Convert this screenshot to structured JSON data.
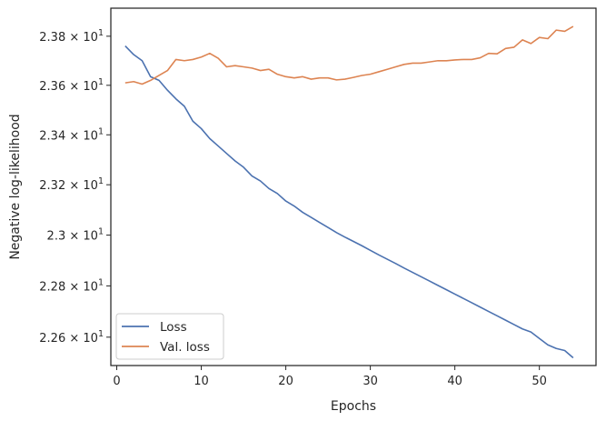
{
  "chart_data": {
    "type": "line",
    "xlabel": "Epochs",
    "ylabel": "Negative log-likelihood",
    "yscale": "log",
    "xlim": [
      -0.7,
      56.7
    ],
    "ylim": [
      22.49,
      23.915
    ],
    "grid": false,
    "legend_position": "lower-left",
    "x_ticks": [
      {
        "value": 0,
        "label": "0"
      },
      {
        "value": 10,
        "label": "10"
      },
      {
        "value": 20,
        "label": "20"
      },
      {
        "value": 30,
        "label": "30"
      },
      {
        "value": 40,
        "label": "40"
      },
      {
        "value": 50,
        "label": "50"
      }
    ],
    "y_ticks": [
      {
        "value": 22.6,
        "mantissa": "2.26",
        "base": "10",
        "exp": "1"
      },
      {
        "value": 22.8,
        "mantissa": "2.28",
        "base": "10",
        "exp": "1"
      },
      {
        "value": 23.0,
        "mantissa": "2.3",
        "base": "10",
        "exp": "1"
      },
      {
        "value": 23.2,
        "mantissa": "2.32",
        "base": "10",
        "exp": "1"
      },
      {
        "value": 23.4,
        "mantissa": "2.34",
        "base": "10",
        "exp": "1"
      },
      {
        "value": 23.6,
        "mantissa": "2.36",
        "base": "10",
        "exp": "1"
      },
      {
        "value": 23.8,
        "mantissa": "2.38",
        "base": "10",
        "exp": "1"
      }
    ],
    "x": [
      1,
      2,
      3,
      4,
      5,
      6,
      7,
      8,
      9,
      10,
      11,
      12,
      13,
      14,
      15,
      16,
      17,
      18,
      19,
      20,
      21,
      22,
      23,
      24,
      25,
      26,
      27,
      28,
      29,
      30,
      31,
      32,
      33,
      34,
      35,
      36,
      37,
      38,
      39,
      40,
      41,
      42,
      43,
      44,
      45,
      46,
      47,
      48,
      49,
      50,
      51,
      52,
      53,
      54
    ],
    "series": [
      {
        "name": "Loss",
        "color": "#4c72b0",
        "values": [
          23.76,
          23.725,
          23.7,
          23.635,
          23.62,
          23.58,
          23.545,
          23.515,
          23.455,
          23.425,
          23.385,
          23.355,
          23.325,
          23.295,
          23.27,
          23.235,
          23.215,
          23.185,
          23.165,
          23.135,
          23.115,
          23.09,
          23.07,
          23.05,
          23.03,
          23.01,
          22.992,
          22.975,
          22.958,
          22.94,
          22.922,
          22.905,
          22.888,
          22.87,
          22.853,
          22.836,
          22.819,
          22.802,
          22.785,
          22.768,
          22.751,
          22.734,
          22.717,
          22.7,
          22.683,
          22.666,
          22.649,
          22.632,
          22.62,
          22.595,
          22.57,
          22.556,
          22.548,
          22.52
        ]
      },
      {
        "name": "Val. loss",
        "color": "#dd8452",
        "values": [
          23.61,
          23.615,
          23.605,
          23.62,
          23.64,
          23.66,
          23.705,
          23.7,
          23.705,
          23.715,
          23.73,
          23.71,
          23.675,
          23.68,
          23.675,
          23.67,
          23.66,
          23.665,
          23.645,
          23.635,
          23.63,
          23.635,
          23.625,
          23.63,
          23.63,
          23.622,
          23.625,
          23.632,
          23.64,
          23.645,
          23.655,
          23.665,
          23.675,
          23.685,
          23.69,
          23.69,
          23.695,
          23.7,
          23.7,
          23.703,
          23.705,
          23.705,
          23.712,
          23.73,
          23.728,
          23.75,
          23.755,
          23.785,
          23.77,
          23.795,
          23.79,
          23.825,
          23.82,
          23.84
        ]
      }
    ]
  }
}
